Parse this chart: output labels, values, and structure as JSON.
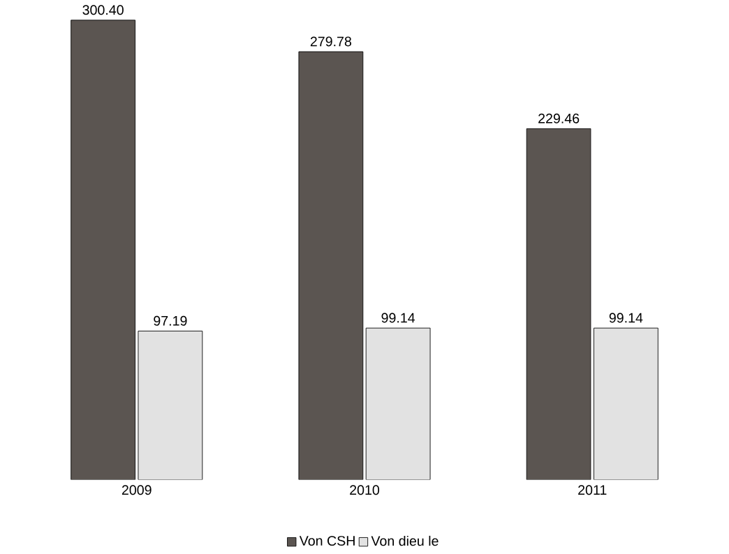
{
  "chart_data": {
    "type": "bar",
    "categories": [
      "2009",
      "2010",
      "2011"
    ],
    "series": [
      {
        "name": "Von CSH",
        "color": "#5b5551",
        "values": [
          300.4,
          279.78,
          229.46
        ],
        "value_labels": [
          "300.40",
          "279.78",
          "229.46"
        ]
      },
      {
        "name": "Von dieu le",
        "color": "#e2e2e2",
        "values": [
          97.19,
          99.14,
          99.14
        ],
        "value_labels": [
          "97.19",
          "99.14",
          "99.14"
        ]
      }
    ],
    "legend": "bottom"
  }
}
